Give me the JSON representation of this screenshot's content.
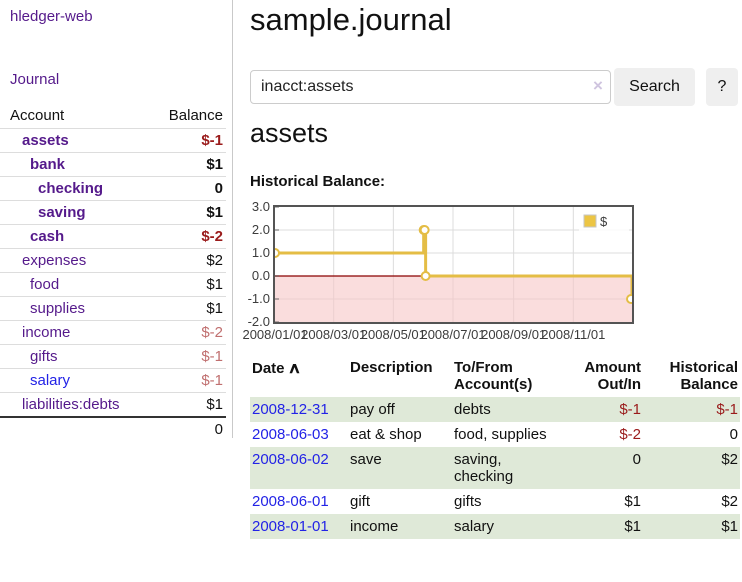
{
  "sidebar": {
    "brand": "hledger-web",
    "journal_label": "Journal",
    "accounts_table": {
      "account_header": "Account",
      "balance_header": "Balance",
      "rows": [
        {
          "name": "assets",
          "balance": "$-1",
          "depth": 1,
          "selected": true,
          "balance_style": "neg-strong",
          "link": "purple"
        },
        {
          "name": "bank",
          "balance": "$1",
          "depth": 2,
          "selected": true,
          "balance_style": "pos-strong",
          "link": "purple"
        },
        {
          "name": "checking",
          "balance": "0",
          "depth": 3,
          "selected": true,
          "balance_style": "pos-strong",
          "link": "purple"
        },
        {
          "name": "saving",
          "balance": "$1",
          "depth": 3,
          "selected": true,
          "balance_style": "pos-strong",
          "link": "purple"
        },
        {
          "name": "cash",
          "balance": "$-2",
          "depth": 2,
          "selected": true,
          "balance_style": "neg-strong",
          "link": "purple"
        },
        {
          "name": "expenses",
          "balance": "$2",
          "depth": 1,
          "selected": false,
          "balance_style": "pos",
          "link": "purple"
        },
        {
          "name": "food",
          "balance": "$1",
          "depth": 2,
          "selected": false,
          "balance_style": "pos",
          "link": "purple"
        },
        {
          "name": "supplies",
          "balance": "$1",
          "depth": 2,
          "selected": false,
          "balance_style": "pos",
          "link": "purple"
        },
        {
          "name": "income",
          "balance": "$-2",
          "depth": 1,
          "selected": false,
          "balance_style": "neg-faint",
          "link": "purple"
        },
        {
          "name": "gifts",
          "balance": "$-1",
          "depth": 2,
          "selected": false,
          "balance_style": "neg-faint",
          "link": "purple"
        },
        {
          "name": "salary",
          "balance": "$-1",
          "depth": 2,
          "selected": false,
          "balance_style": "neg-faint",
          "link": "blue"
        },
        {
          "name": "liabilities:debts",
          "balance": "$1",
          "depth": 1,
          "selected": false,
          "balance_style": "pos",
          "link": "purple"
        }
      ],
      "total": "0"
    }
  },
  "main": {
    "title": "sample.journal",
    "search": {
      "value": "inacct:assets",
      "clear_icon": "×",
      "search_button": "Search",
      "help_button": "?"
    },
    "account_heading": "assets",
    "chart_title": "Historical Balance:"
  },
  "chart_data": {
    "type": "line",
    "step": true,
    "title": "Historical Balance:",
    "series": [
      {
        "name": "$",
        "x": [
          "2008-01-01",
          "2008-06-01",
          "2008-06-02",
          "2008-06-03",
          "2008-12-31"
        ],
        "y": [
          1,
          2,
          2,
          0,
          -1
        ]
      }
    ],
    "xlim": [
      "2008-01-01",
      "2008-12-31"
    ],
    "ylim": [
      -2,
      3
    ],
    "ytick_labels": [
      "3.0",
      "2.0",
      "1.0",
      "0.0",
      "-1.0",
      "-2.0"
    ],
    "ytick_values": [
      3,
      2,
      1,
      0,
      -1,
      -2
    ],
    "xtick_labels": [
      "2008/01/01",
      "2008/03/01",
      "2008/05/01",
      "2008/07/01",
      "2008/09/01",
      "2008/11/01"
    ],
    "xtick_dates": [
      "2008-01-01",
      "2008-03-01",
      "2008-05-01",
      "2008-07-01",
      "2008-09-01",
      "2008-11-01"
    ],
    "grid": true,
    "legend_position": "top-right",
    "legend_label": "$"
  },
  "register": {
    "headers": {
      "date": "Date",
      "description": "Description",
      "accounts": "To/From Account(s)",
      "amount": "Amount Out/In",
      "balance": "Historical Balance"
    },
    "sort_icon": "∧",
    "rows": [
      {
        "date": "2008-12-31",
        "description": "pay off",
        "accounts": "debts",
        "amount": "$-1",
        "balance": "$-1"
      },
      {
        "date": "2008-06-03",
        "description": "eat & shop",
        "accounts": "food, supplies",
        "amount": "$-2",
        "balance": "0"
      },
      {
        "date": "2008-06-02",
        "description": "save",
        "accounts": "saving, checking",
        "amount": "0",
        "balance": "$2"
      },
      {
        "date": "2008-06-01",
        "description": "gift",
        "accounts": "gifts",
        "amount": "$1",
        "balance": "$2"
      },
      {
        "date": "2008-01-01",
        "description": "income",
        "accounts": "salary",
        "amount": "$1",
        "balance": "$1"
      }
    ]
  },
  "colors": {
    "link_purple": "#551a8b",
    "link_blue": "#2323e6",
    "negative_strong": "#9a1b1b",
    "negative_faint": "#c06f6f",
    "row_stripe_green": "#dfe9d8",
    "chart_line_gold": "#e4bd45",
    "chart_negative_fill": "#f6c7c7",
    "chart_zero_line": "#8b0000",
    "chart_border": "#545454",
    "grid_line": "#dcdcdc",
    "button_bg": "#efefef"
  }
}
